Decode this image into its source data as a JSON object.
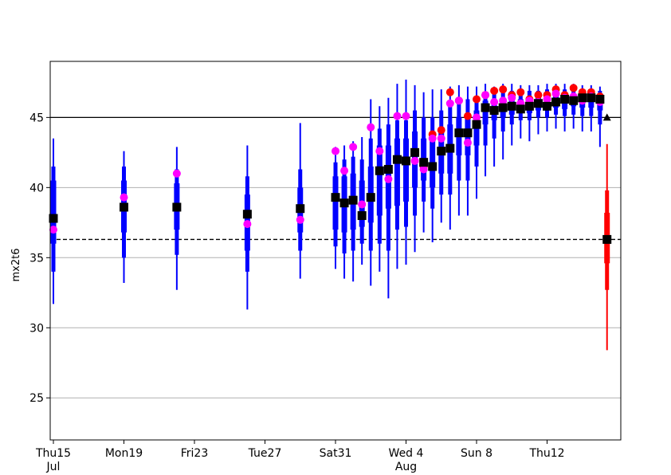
{
  "chart_data": {
    "type": "boxplot",
    "ylabel": "mx2t6",
    "ylim": [
      22,
      49
    ],
    "y_ticks": [
      25,
      30,
      35,
      40,
      45
    ],
    "grid": "horizontal",
    "x_range": [
      0,
      32
    ],
    "x_ticks": [
      {
        "x": 0,
        "label": "Thu15",
        "sub": "Jul",
        "color": "#000000"
      },
      {
        "x": 4,
        "label": "Mon19",
        "sub": "",
        "color": "#000000"
      },
      {
        "x": 8,
        "label": "Fri23",
        "sub": "",
        "color": "#000000"
      },
      {
        "x": 12,
        "label": "Tue27",
        "sub": "",
        "color": "#000000"
      },
      {
        "x": 16,
        "label": "Sat31",
        "sub": "",
        "color": "#000000"
      },
      {
        "x": 20,
        "label": "Wed 4",
        "sub": "Aug",
        "color": "#000000"
      },
      {
        "x": 24,
        "label": "Sun 8",
        "sub": "",
        "color": "#ff0000"
      },
      {
        "x": 28,
        "label": "Thu12",
        "sub": "",
        "color": "#000000"
      }
    ],
    "reference_lines": [
      {
        "y": 45,
        "style": "solid",
        "color": "#000000"
      },
      {
        "y": 36.3,
        "style": "dashed",
        "color": "#000000"
      }
    ],
    "colors": {
      "ensemble": "#0000ff",
      "climate": "#ff0000",
      "median": "#000000",
      "hres": "#ff00ff",
      "red_marker": "#ff0000"
    },
    "ensemble": [
      {
        "x": 0.0,
        "min": 31.7,
        "p10": 34.0,
        "q1": 36.0,
        "median": 37.8,
        "q3": 40.5,
        "p90": 41.5,
        "max": 43.5,
        "hres": 37.0
      },
      {
        "x": 4.0,
        "min": 33.2,
        "p10": 35.0,
        "q1": 36.8,
        "median": 38.6,
        "q3": 40.5,
        "p90": 41.5,
        "max": 42.6,
        "hres": 39.3
      },
      {
        "x": 7.0,
        "min": 32.7,
        "p10": 35.2,
        "q1": 37.0,
        "median": 38.6,
        "q3": 40.3,
        "p90": 41.3,
        "max": 42.9,
        "hres": 41.0
      },
      {
        "x": 11.0,
        "min": 31.3,
        "p10": 34.0,
        "q1": 35.5,
        "median": 38.1,
        "q3": 39.5,
        "p90": 40.8,
        "max": 43.0,
        "hres": 37.4
      },
      {
        "x": 14.0,
        "min": 33.5,
        "p10": 35.5,
        "q1": 36.8,
        "median": 38.5,
        "q3": 40.0,
        "p90": 41.3,
        "max": 44.6,
        "hres": 37.7
      },
      {
        "x": 16.0,
        "min": 34.2,
        "p10": 35.8,
        "q1": 37.0,
        "median": 39.3,
        "q3": 40.8,
        "p90": 41.8,
        "max": 42.9,
        "hres": 42.6
      },
      {
        "x": 16.5,
        "min": 33.5,
        "p10": 35.3,
        "q1": 36.8,
        "median": 38.9,
        "q3": 40.8,
        "p90": 42.0,
        "max": 43.0,
        "hres": 41.2
      },
      {
        "x": 17.0,
        "min": 33.3,
        "p10": 35.5,
        "q1": 37.0,
        "median": 39.1,
        "q3": 41.0,
        "p90": 42.2,
        "max": 43.3,
        "hres": 42.9
      },
      {
        "x": 17.5,
        "min": 34.5,
        "p10": 36.0,
        "q1": 37.2,
        "median": 38.0,
        "q3": 40.5,
        "p90": 42.0,
        "max": 43.6,
        "hres": 38.8
      },
      {
        "x": 18.0,
        "min": 33.0,
        "p10": 35.5,
        "q1": 37.5,
        "median": 39.3,
        "q3": 41.5,
        "p90": 43.5,
        "max": 46.3,
        "hres": 44.3
      },
      {
        "x": 18.5,
        "min": 34.0,
        "p10": 36.0,
        "q1": 38.0,
        "median": 41.2,
        "q3": 43.0,
        "p90": 44.2,
        "max": 45.8,
        "hres": 42.6
      },
      {
        "x": 19.0,
        "min": 32.1,
        "p10": 35.5,
        "q1": 38.5,
        "median": 41.3,
        "q3": 43.0,
        "p90": 44.5,
        "max": 46.4,
        "hres": 40.6
      },
      {
        "x": 19.5,
        "min": 34.2,
        "p10": 37.0,
        "q1": 38.7,
        "median": 42.0,
        "q3": 43.5,
        "p90": 44.8,
        "max": 47.4,
        "hres": 45.1
      },
      {
        "x": 20.0,
        "min": 34.5,
        "p10": 37.2,
        "q1": 39.0,
        "median": 41.9,
        "q3": 43.5,
        "p90": 44.8,
        "max": 47.7,
        "hres": 45.1
      },
      {
        "x": 20.5,
        "min": 35.4,
        "p10": 38.0,
        "q1": 40.0,
        "median": 42.5,
        "q3": 44.0,
        "p90": 45.5,
        "max": 47.3,
        "hres": 41.9
      },
      {
        "x": 21.0,
        "min": 36.8,
        "p10": 39.0,
        "q1": 40.5,
        "median": 41.8,
        "q3": 43.5,
        "p90": 45.0,
        "max": 46.8,
        "hres": 41.3,
        "marker": 41.5
      },
      {
        "x": 21.5,
        "min": 36.1,
        "p10": 38.5,
        "q1": 40.0,
        "median": 41.5,
        "q3": 43.5,
        "p90": 45.0,
        "max": 47.0,
        "hres": 43.5,
        "marker": 43.8
      },
      {
        "x": 22.0,
        "min": 37.5,
        "p10": 39.5,
        "q1": 41.0,
        "median": 42.6,
        "q3": 44.0,
        "p90": 45.5,
        "max": 47.0,
        "hres": 43.5,
        "marker": 44.1
      },
      {
        "x": 22.5,
        "min": 37.0,
        "p10": 39.5,
        "q1": 41.0,
        "median": 42.8,
        "q3": 44.5,
        "p90": 46.0,
        "max": 47.2,
        "hres": 46.0,
        "marker": 46.8
      },
      {
        "x": 23.0,
        "min": 38.0,
        "p10": 40.5,
        "q1": 42.3,
        "median": 43.9,
        "q3": 45.0,
        "p90": 46.3,
        "max": 47.3,
        "hres": 46.2,
        "marker": 46.2
      },
      {
        "x": 23.5,
        "min": 38.0,
        "p10": 40.5,
        "q1": 42.3,
        "median": 43.9,
        "q3": 45.3,
        "p90": 46.3,
        "max": 47.2,
        "hres": 43.2,
        "marker": 45.1
      },
      {
        "x": 24.0,
        "min": 39.2,
        "p10": 41.5,
        "q1": 43.0,
        "median": 44.5,
        "q3": 45.5,
        "p90": 46.3,
        "max": 47.2,
        "hres": 45.0,
        "marker": 46.3
      },
      {
        "x": 24.5,
        "min": 40.8,
        "p10": 43.0,
        "q1": 44.5,
        "median": 45.7,
        "q3": 46.2,
        "p90": 46.8,
        "max": 47.4,
        "hres": 46.6,
        "marker": 46.6
      },
      {
        "x": 25.0,
        "min": 41.5,
        "p10": 43.5,
        "q1": 44.8,
        "median": 45.5,
        "q3": 46.3,
        "p90": 46.8,
        "max": 47.2,
        "hres": 46.1,
        "marker": 46.9
      },
      {
        "x": 25.5,
        "min": 42.0,
        "p10": 44.0,
        "q1": 45.0,
        "median": 45.7,
        "q3": 46.4,
        "p90": 46.9,
        "max": 47.4,
        "hres": 46.2,
        "marker": 47.0
      },
      {
        "x": 26.0,
        "min": 43.0,
        "p10": 44.5,
        "q1": 45.2,
        "median": 45.8,
        "q3": 46.4,
        "p90": 46.9,
        "max": 47.4,
        "hres": 46.4,
        "marker": 46.6
      },
      {
        "x": 26.5,
        "min": 43.5,
        "p10": 44.8,
        "q1": 45.3,
        "median": 45.6,
        "q3": 46.3,
        "p90": 46.8,
        "max": 47.3,
        "hres": 46.0,
        "marker": 46.8
      },
      {
        "x": 27.0,
        "min": 43.3,
        "p10": 44.8,
        "q1": 45.3,
        "median": 45.8,
        "q3": 46.4,
        "p90": 46.9,
        "max": 47.3,
        "hres": 46.2,
        "marker": 46.3
      },
      {
        "x": 27.5,
        "min": 43.8,
        "p10": 45.0,
        "q1": 45.5,
        "median": 46.0,
        "q3": 46.5,
        "p90": 46.9,
        "max": 47.3,
        "hres": 46.1,
        "marker": 46.6
      },
      {
        "x": 28.0,
        "min": 44.0,
        "p10": 45.0,
        "q1": 45.5,
        "median": 45.8,
        "q3": 46.5,
        "p90": 47.0,
        "max": 47.4,
        "hres": 46.3,
        "marker": 46.6
      },
      {
        "x": 28.5,
        "min": 44.2,
        "p10": 45.2,
        "q1": 45.7,
        "median": 46.1,
        "q3": 46.6,
        "p90": 47.0,
        "max": 47.4,
        "hres": 46.7,
        "marker": 47.0
      },
      {
        "x": 29.0,
        "min": 44.0,
        "p10": 45.1,
        "q1": 45.6,
        "median": 46.3,
        "q3": 46.7,
        "p90": 47.0,
        "max": 47.4,
        "hres": 46.4,
        "marker": 46.6
      },
      {
        "x": 29.5,
        "min": 44.2,
        "p10": 45.2,
        "q1": 45.8,
        "median": 46.2,
        "q3": 46.7,
        "p90": 47.0,
        "max": 47.4,
        "hres": 46.5,
        "marker": 47.1
      },
      {
        "x": 30.0,
        "min": 44.0,
        "p10": 45.1,
        "q1": 45.7,
        "median": 46.4,
        "q3": 46.7,
        "p90": 47.0,
        "max": 47.3,
        "hres": 46.2,
        "marker": 46.8
      },
      {
        "x": 30.5,
        "min": 44.0,
        "p10": 45.1,
        "q1": 45.7,
        "median": 46.4,
        "q3": 46.7,
        "p90": 47.0,
        "max": 47.3,
        "hres": 46.5,
        "marker": 46.8
      },
      {
        "x": 31.0,
        "min": 42.9,
        "p10": 44.5,
        "q1": 45.5,
        "median": 46.3,
        "q3": 46.6,
        "p90": 46.9,
        "max": 47.2,
        "hres": 46.1,
        "marker": 46.5
      }
    ],
    "climate": {
      "x": 31.4,
      "min": 28.4,
      "p10": 32.7,
      "q1": 34.6,
      "median": 36.3,
      "q3": 38.2,
      "p90": 39.8,
      "max": 43.1
    },
    "triangle_marker": {
      "x": 31.4,
      "y": 45.0
    }
  }
}
